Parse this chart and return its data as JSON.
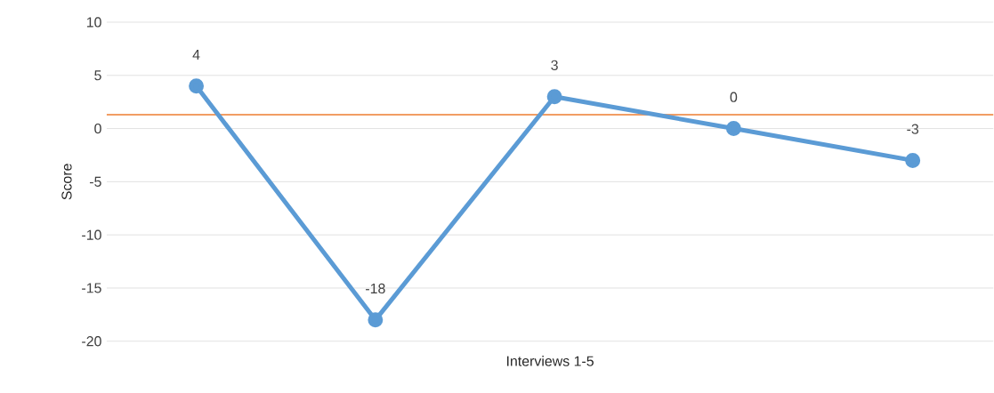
{
  "chart_data": {
    "type": "line",
    "xlabel": "Interviews 1-5",
    "ylabel": "Score",
    "categories": [
      null,
      null,
      null,
      null,
      null
    ],
    "series": [
      {
        "color": "#5b9bd5",
        "values": [
          4,
          -18,
          3,
          0,
          -3
        ]
      }
    ],
    "ylim": [
      -20,
      10
    ],
    "yticks": [
      -20,
      -15,
      -10,
      -5,
      0,
      5,
      10
    ],
    "ref_lines": [
      {
        "axis": "y",
        "value": 1.3,
        "color": "#ed7d31"
      }
    ],
    "grid": "y",
    "marker": "circle",
    "line_style": "solid",
    "data_labels": true,
    "tick_labels": "y"
  }
}
